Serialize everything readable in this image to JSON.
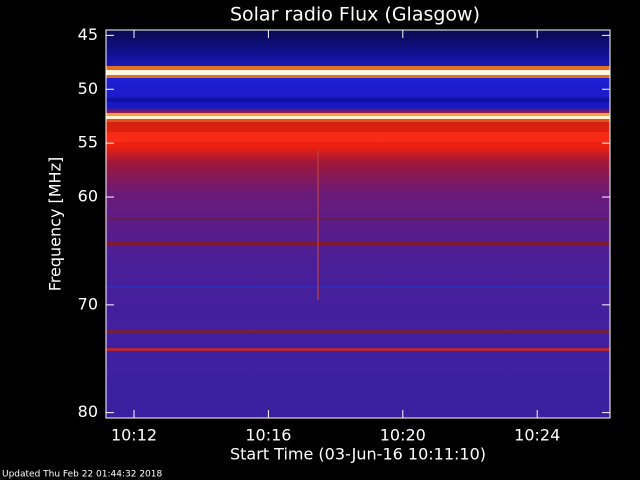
{
  "chart_data": {
    "type": "spectrogram",
    "title": "Solar radio Flux (Glasgow)",
    "y_label": "Frequency [MHz]",
    "x_label": "Start Time (03-Jun-16 10:11:10)",
    "ylim": [
      44.5,
      80.5
    ],
    "y_inverted": true,
    "yticks": [
      45,
      50,
      55,
      60,
      70,
      80
    ],
    "xlim": [
      11.1667,
      26.1667
    ],
    "xticks": [
      {
        "value": 12,
        "label": "10:12"
      },
      {
        "value": 16,
        "label": "10:16"
      },
      {
        "value": 20,
        "label": "10:20"
      },
      {
        "value": 24,
        "label": "10:24"
      }
    ],
    "footer": "Updated Thu Feb 22 01:44:32 2018"
  }
}
